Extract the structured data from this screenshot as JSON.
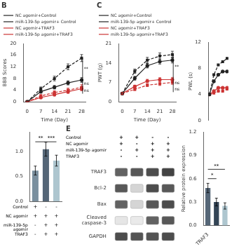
{
  "chart_data": [
    {
      "type": "line",
      "title": "B",
      "x_label": "Time (Day)",
      "y_label": "BBB Scores",
      "x": [
        0,
        7,
        14,
        21,
        28
      ],
      "xlim": [
        -2,
        30
      ],
      "xticks": [
        0,
        7,
        14,
        21,
        28
      ],
      "ylim": [
        0,
        20
      ],
      "yticks": [
        0,
        4,
        8,
        12,
        16,
        20
      ],
      "grid": false,
      "legend": "top",
      "series": [
        {
          "name": "NC agomir+Control",
          "color": "#222222",
          "line_style": "solid",
          "marker": "circle",
          "values": [
            0,
            3.5,
            5.0,
            6.5,
            7.5
          ],
          "errors": [
            0.05,
            0.5,
            0.6,
            0.7,
            0.8
          ]
        },
        {
          "name": "miR-139-5p agomir+ Control",
          "color": "#222222",
          "line_style": "dashed",
          "marker": "square",
          "values": [
            0,
            4.5,
            8.0,
            12.0,
            15.0
          ],
          "errors": [
            0.05,
            0.6,
            0.8,
            1.0,
            1.2
          ]
        },
        {
          "name": "NC agomir+TRAF3",
          "color": "#cc3333",
          "line_style": "solid",
          "marker": "circle",
          "values": [
            0,
            1.5,
            2.5,
            3.5,
            4.5
          ],
          "errors": [
            0.05,
            0.4,
            0.5,
            0.6,
            0.7
          ]
        },
        {
          "name": "miR-139-5p agomir+TRAF3",
          "color": "#cc3333",
          "line_style": "dashed",
          "marker": "square",
          "values": [
            0,
            2.0,
            3.2,
            4.0,
            5.0
          ],
          "errors": [
            0.05,
            0.5,
            0.6,
            0.7,
            0.9
          ]
        }
      ],
      "annotations": [
        {
          "text": "**",
          "x": 28.5,
          "y_from": 7.5,
          "y_to": 15.0
        },
        {
          "text": "ns",
          "x": 28.5,
          "y_from": 5.0,
          "y_to": 7.5
        },
        {
          "text": "ns",
          "x": 28.5,
          "y_from": 2.8,
          "y_to": 5.0
        }
      ]
    },
    {
      "type": "line",
      "title": "C",
      "x_label": "Time (Day)",
      "y_label": "PWT (g)",
      "x": [
        0,
        7,
        14,
        21,
        28
      ],
      "xlim": [
        -2,
        30
      ],
      "xticks": [
        0,
        7,
        14,
        21,
        28
      ],
      "ylim": [
        0,
        21
      ],
      "yticks": [
        0,
        7,
        14,
        21
      ],
      "grid": false,
      "legend": "top",
      "series": [
        {
          "name": "NC agomir+Control",
          "color": "#222222",
          "line_style": "solid",
          "marker": "circle",
          "values": [
            3.0,
            8.5,
            13.0,
            14.5,
            15.0
          ],
          "errors": [
            0.3,
            0.7,
            0.8,
            0.9,
            1.0
          ]
        },
        {
          "name": "miR-139-5p agomir+ Control",
          "color": "#222222",
          "line_style": "dashed",
          "marker": "square",
          "values": [
            3.0,
            11.0,
            15.0,
            16.5,
            17.0
          ],
          "errors": [
            0.3,
            0.8,
            1.0,
            1.1,
            1.2
          ]
        },
        {
          "name": "NC agomir+TRAF3",
          "color": "#cc3333",
          "line_style": "solid",
          "marker": "circle",
          "values": [
            3.0,
            5.5,
            7.5,
            8.0,
            8.0
          ],
          "errors": [
            0.3,
            0.5,
            0.6,
            0.7,
            0.8
          ]
        },
        {
          "name": "miR-139-5p agomir+TRAF3",
          "color": "#cc3333",
          "line_style": "dashed",
          "marker": "square",
          "values": [
            3.0,
            4.5,
            6.0,
            6.5,
            7.0
          ],
          "errors": [
            0.3,
            0.4,
            0.5,
            0.6,
            0.7
          ]
        }
      ],
      "annotations": [
        {
          "text": "**",
          "x": 28.5,
          "y_from": 8.0,
          "y_to": 17.0
        },
        {
          "text": "ns",
          "x": 28.5,
          "y_from": 5.5,
          "y_to": 8.0
        },
        {
          "text": "ns",
          "x": 28.5,
          "y_from": 3.5,
          "y_to": 5.5
        }
      ]
    },
    {
      "type": "line",
      "y_label": "PWL (s)",
      "x": [
        0,
        7,
        14,
        21,
        28
      ],
      "xlim": [
        -2,
        30
      ],
      "ylim": [
        0,
        12
      ],
      "yticks": [
        0,
        4,
        8,
        12
      ],
      "grid": false,
      "tick_labels": "y",
      "series": [
        {
          "color": "#222222",
          "line_style": "solid",
          "marker": "circle",
          "values": [
            4,
            6,
            7,
            7.5,
            7.5
          ]
        },
        {
          "color": "#222222",
          "line_style": "dashed",
          "marker": "square",
          "values": [
            4,
            7,
            8.5,
            9.0,
            9.5
          ]
        },
        {
          "color": "#cc3333",
          "line_style": "solid",
          "marker": "circle",
          "values": [
            4,
            4.5,
            5,
            5,
            5
          ]
        },
        {
          "color": "#cc3333",
          "line_style": "dashed",
          "marker": "square",
          "values": [
            4,
            4.2,
            4.5,
            4.5,
            4.8
          ]
        }
      ]
    },
    {
      "type": "bar",
      "values": [
        0.62,
        1.05,
        0.82
      ],
      "errors": [
        0.09,
        0.14,
        0.11
      ],
      "colors": [
        "#7a8f9e",
        "#556677",
        "#aec6cf"
      ],
      "ylim": [
        0,
        1.4
      ],
      "yticks": [
        {
          "value": 0,
          "label": "0.0"
        },
        0.5,
        {
          "value": 1,
          "label": "1.0"
        }
      ],
      "grid": false,
      "tick_labels": "y",
      "row_labels": [
        "Control",
        "NC agomir",
        "miR-139-5p\nagomir",
        "TRAF3"
      ],
      "row_signs": [
        [
          "+",
          "-",
          "-"
        ],
        [
          "+",
          "+",
          "+"
        ],
        [
          "-",
          "+",
          "+"
        ],
        [
          "-",
          "+",
          "+"
        ]
      ],
      "annotations": [
        {
          "text": "**",
          "from": 0,
          "to": 1,
          "y": 1.2
        },
        {
          "text": "***",
          "from": 1,
          "to": 2,
          "y": 1.2
        }
      ]
    },
    {
      "type": "heatmap",
      "title": "E",
      "header_labels": [
        "Control",
        "NC agomir",
        "miR-139-5p agomir",
        "TRAF3"
      ],
      "header_signs": [
        [
          "+",
          "+",
          "-",
          "-"
        ],
        [
          "+",
          "-",
          "+",
          "+"
        ],
        [
          "-",
          "+",
          "+",
          "+"
        ],
        [
          "-",
          "-",
          "+",
          "+"
        ]
      ],
      "categories": [
        "TRAF3",
        "Bcl-2",
        "Bax",
        "Cleaved\ncaspase-3",
        "GAPDH"
      ],
      "cells": [
        [
          0.75,
          0.8,
          0.85,
          0.9
        ],
        [
          0.8,
          0.2,
          0.85,
          0.8
        ],
        [
          0.75,
          0.2,
          0.8,
          0.85
        ],
        [
          0.12,
          0.1,
          0.75,
          0.8
        ],
        [
          0.85,
          0.82,
          0.82,
          0.85
        ]
      ]
    },
    {
      "type": "bar",
      "y_label": "Relative protein expression",
      "categories": [
        "TRAF3",
        null,
        null
      ],
      "values": [
        0.48,
        0.3,
        0.25
      ],
      "errors": [
        0.06,
        0.05,
        0.04
      ],
      "colors": [
        "#556677",
        "#334455",
        "#aec6cf"
      ],
      "ylim": [
        0,
        1.2
      ],
      "yticks": [
        {
          "value": 0,
          "label": "0.0"
        },
        0.3,
        0.6,
        0.9,
        1.2
      ],
      "grid": false,
      "annotations": [
        {
          "text": "*",
          "from": 0,
          "to": 1,
          "y": 0.6
        },
        {
          "text": "**",
          "from": 0,
          "to": 2,
          "y": 0.72
        }
      ]
    }
  ]
}
